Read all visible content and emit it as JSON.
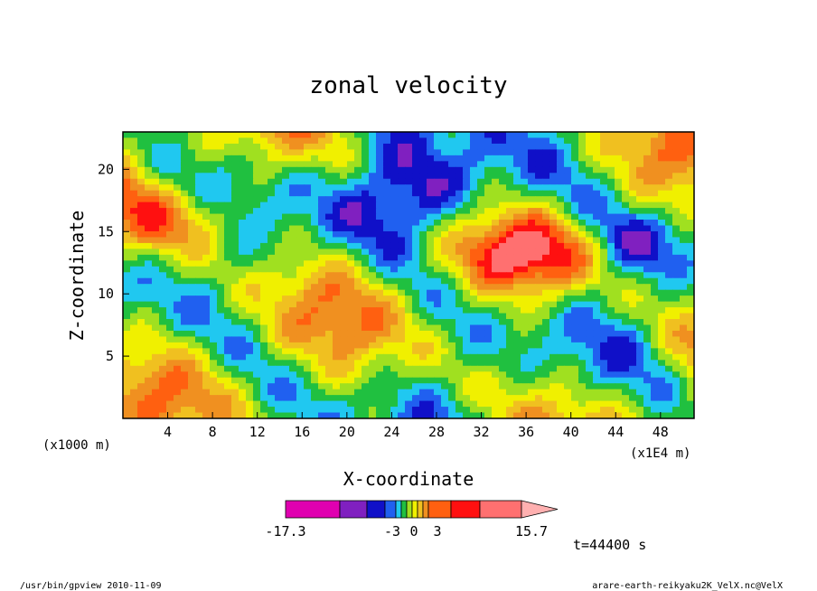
{
  "chart_data": {
    "type": "heatmap",
    "title": "zonal velocity",
    "xlabel": "X-coordinate",
    "ylabel": "Z-coordinate",
    "x_unit": "(x1E4 m)",
    "y_unit": "(x1000 m)",
    "xlim": [
      0,
      51
    ],
    "ylim": [
      0,
      23
    ],
    "x_ticks": [
      4,
      8,
      12,
      16,
      20,
      24,
      28,
      32,
      36,
      40,
      44,
      48
    ],
    "y_ticks": [
      5,
      10,
      15,
      20
    ],
    "colorbar": {
      "colors": [
        "#e000b0",
        "#8020c0",
        "#1010c8",
        "#2060f0",
        "#20c8f0",
        "#20c040",
        "#a0e020",
        "#f0f000",
        "#f0c020",
        "#f09020",
        "#ff6010",
        "#ff1010",
        "#ff7070",
        "#ffb0b0"
      ],
      "labels": [
        "-17.3",
        "-3",
        "0",
        "3",
        "15.7"
      ],
      "extend": "max"
    },
    "time_label": "t=44400 s"
  },
  "footer": {
    "left": "/usr/bin/gpview   2010-11-09",
    "right": "arare-earth-reikyaku2K_VelX.nc@VelX"
  }
}
